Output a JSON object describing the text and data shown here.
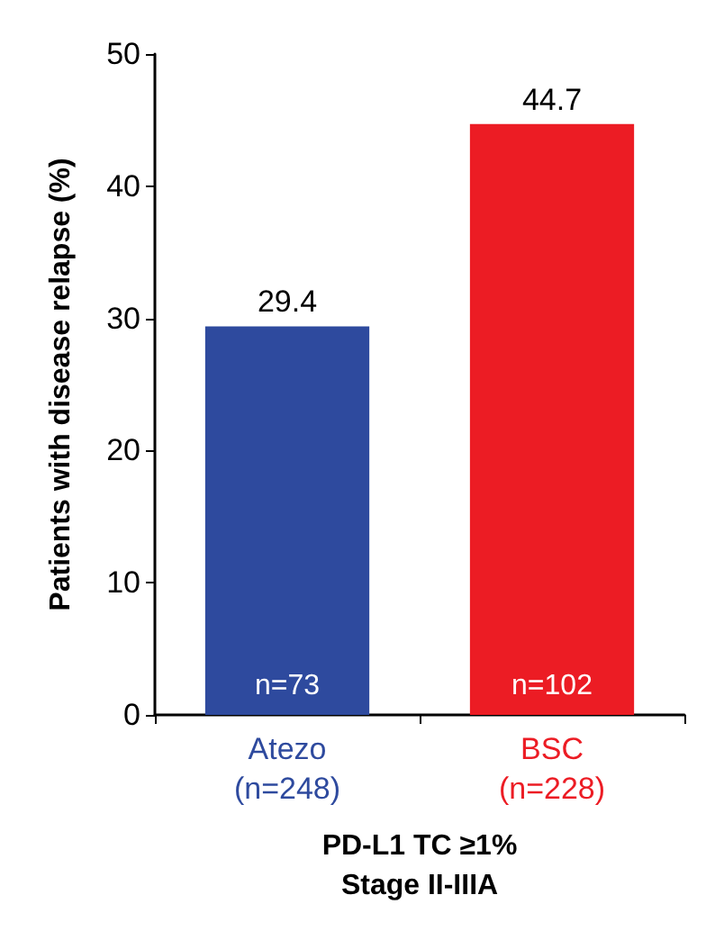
{
  "chart_data": {
    "type": "bar",
    "categories": [
      "Atezo\n(n=248)",
      "BSC\n(n=228)"
    ],
    "values": [
      29.4,
      44.7
    ],
    "colors": [
      "#2e4a9e",
      "#ec1c24"
    ],
    "ylabel": "Patients with disease relapse (%)",
    "xlabel": "PD-L1 TC ≥1%\nStage II-IIIA",
    "ylim": [
      0,
      50
    ],
    "yticks": [
      0,
      10,
      20,
      30,
      40,
      50
    ],
    "data_labels": true,
    "grid": false,
    "annotations": [
      {
        "text": "n=73",
        "x": "Atezo\n(n=248)",
        "y": 0
      },
      {
        "text": "n=102",
        "x": "BSC\n(n=228)",
        "y": 0
      }
    ]
  }
}
